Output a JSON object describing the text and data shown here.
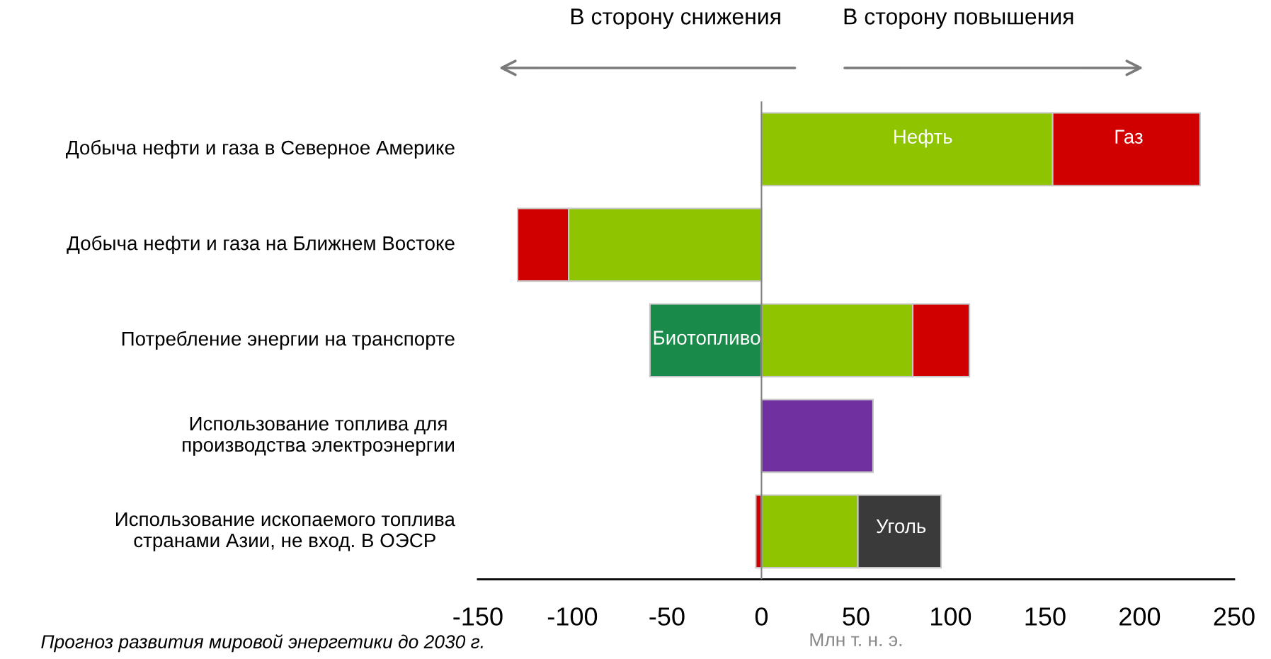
{
  "chart_data": {
    "type": "bar",
    "orientation": "horizontal",
    "stacked": true,
    "xlabel": "Млн т. н. э.",
    "categories": [
      "Добыча нефти и газа в Северное Америке",
      "Добыча нефти и газа на Ближнем Востоке",
      "Потребление энергии на транспорте",
      "Использование топлива для\nпроизводства электроэнергии",
      "Использование ископаемого топлива\nстранами Азии, не вход. В ОЭСР"
    ],
    "series": [
      {
        "color": "#8fc400",
        "values": [
          154,
          -102,
          80,
          null,
          51
        ]
      },
      {
        "color": "#d00000",
        "values": [
          78,
          -27,
          30,
          null,
          -3
        ]
      },
      {
        "color": "#1a8a4a",
        "values": [
          null,
          null,
          -59,
          null,
          null
        ]
      },
      {
        "color": "#7030a0",
        "values": [
          null,
          null,
          null,
          59,
          null
        ]
      },
      {
        "color": "#3a3a3a",
        "values": [
          null,
          null,
          null,
          null,
          44
        ]
      }
    ],
    "xlim": [
      -150,
      250
    ],
    "xticks": [
      -150,
      -100,
      -50,
      0,
      50,
      100,
      150,
      200,
      250
    ],
    "ref_lines": [
      {
        "axis": "x",
        "value": 0,
        "color": "#808080"
      }
    ],
    "grid": false,
    "legend": false,
    "annotations": [
      "В сторону снижения",
      "В сторону повышения",
      "Прогноз развития мировой энергетики до 2030 г.",
      "Нефть",
      "Газ",
      "Биотопливо",
      "Уголь"
    ]
  }
}
